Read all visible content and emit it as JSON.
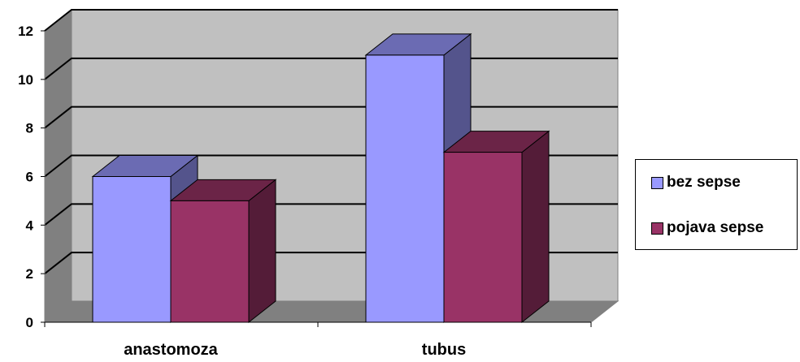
{
  "chart_data": {
    "type": "bar",
    "categories": [
      "anastomoza",
      "tubus"
    ],
    "series": [
      {
        "name": "bez sepse",
        "values": [
          6,
          11
        ],
        "color": "#9999ff"
      },
      {
        "name": "pojava sepse",
        "values": [
          5,
          7
        ],
        "color": "#993366"
      }
    ],
    "ylim": [
      0,
      12
    ],
    "yticks": [
      "0",
      "2",
      "4",
      "6",
      "8",
      "10",
      "12"
    ],
    "grid": true,
    "legend_position": "right",
    "three_d": true
  }
}
